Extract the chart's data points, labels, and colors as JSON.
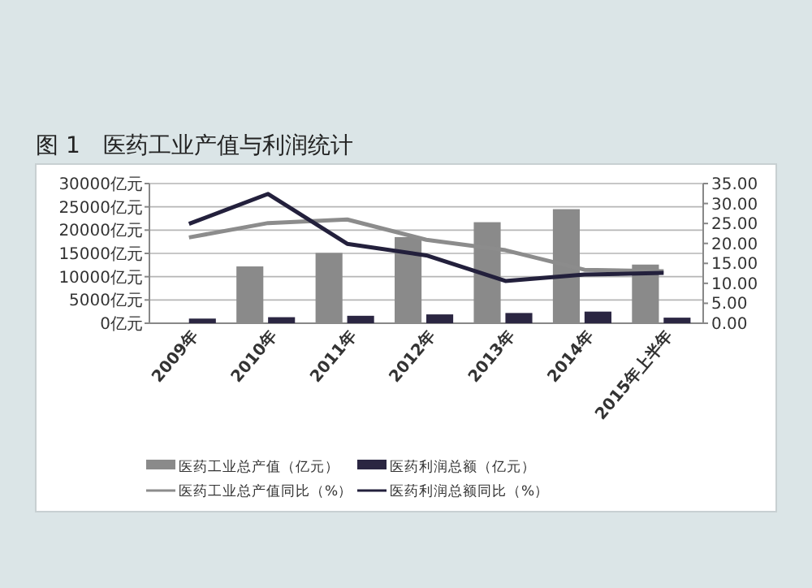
{
  "chart_data": {
    "type": "bar",
    "title": "图 1　医药工业产值与利润统计",
    "categories": [
      "2009年",
      "2010年",
      "2011年",
      "2012年",
      "2013年",
      "2014年",
      "2015年上半年"
    ],
    "series": [
      {
        "name": "医药工业总产值（亿元）",
        "color": "#8a8a8a",
        "values": [
          null,
          12200,
          15100,
          18500,
          21700,
          24500,
          12600
        ]
      },
      {
        "name": "医药利润总额（亿元）",
        "color": "#2b2642",
        "values": [
          1000,
          1300,
          1600,
          1900,
          2200,
          2500,
          1200
        ]
      },
      {
        "name": "医药工业总产值同比（%）",
        "type": "line",
        "axis": "y2",
        "color": "#8c8c8c",
        "values": [
          21.5,
          25.1,
          26,
          20.9,
          18.3,
          13.4,
          13
        ]
      },
      {
        "name": "医药利润总额同比（%）",
        "type": "line",
        "axis": "y2",
        "color": "#23203c",
        "values": [
          24.9,
          32.4,
          19.9,
          17,
          10.6,
          12.2,
          12.6
        ]
      }
    ],
    "ylim": [
      0,
      30000
    ],
    "yticks": [
      {
        "value": 0,
        "label": "0亿元"
      },
      {
        "value": 5000,
        "label": "5000亿元"
      },
      {
        "value": 10000,
        "label": "10000亿元"
      },
      {
        "value": 15000,
        "label": "15000亿元"
      },
      {
        "value": 20000,
        "label": "20000亿元"
      },
      {
        "value": 25000,
        "label": "25000亿元"
      },
      {
        "value": 30000,
        "label": "30000亿元"
      }
    ],
    "y2lim": [
      0,
      35
    ],
    "y2ticks": [
      {
        "value": 0,
        "label": "0.00"
      },
      {
        "value": 5,
        "label": "5.00"
      },
      {
        "value": 10,
        "label": "10.00"
      },
      {
        "value": 15,
        "label": "15.00"
      },
      {
        "value": 20,
        "label": "20.00"
      },
      {
        "value": 25,
        "label": "25.00"
      },
      {
        "value": 30,
        "label": "30.00"
      },
      {
        "value": 35,
        "label": "35.00"
      }
    ],
    "grid": "y",
    "legend": "bottom",
    "line_style": "solid",
    "marker": "none"
  }
}
